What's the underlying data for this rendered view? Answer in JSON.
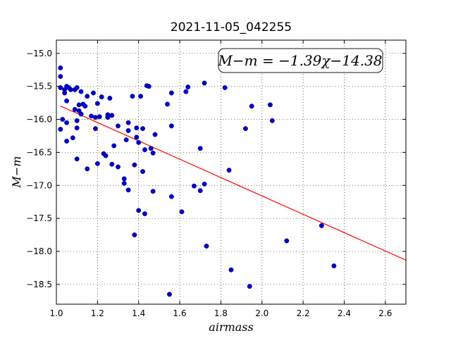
{
  "chart_data": {
    "type": "scatter",
    "title": "2021-11-05_042255",
    "xlabel": "airmass",
    "ylabel": "M−m",
    "xlim": [
      1.0,
      2.7
    ],
    "ylim": [
      -18.8,
      -14.8
    ],
    "y_inverted": true,
    "x_ticks": [
      "1.0",
      "1.2",
      "1.4",
      "1.6",
      "1.8",
      "2.0",
      "2.2",
      "2.4",
      "2.6"
    ],
    "x_tick_values": [
      1.0,
      1.2,
      1.4,
      1.6,
      1.8,
      2.0,
      2.2,
      2.4,
      2.6
    ],
    "y_ticks": [
      "−15.0",
      "−15.5",
      "−16.0",
      "−16.5",
      "−17.0",
      "−17.5",
      "−18.0",
      "−18.5"
    ],
    "y_tick_values": [
      -15.0,
      -15.5,
      -16.0,
      -16.5,
      -17.0,
      -17.5,
      -18.0,
      -18.5
    ],
    "grid": true,
    "point_color": "#0000cc",
    "fit_color": "#ff0000",
    "annotation": "M−m = −1.39χ−14.38",
    "fit": {
      "slope": -1.39,
      "intercept": -14.38
    },
    "points": [
      [
        1.02,
        -15.22
      ],
      [
        1.02,
        -15.35
      ],
      [
        1.02,
        -15.52
      ],
      [
        1.02,
        -16.15
      ],
      [
        1.03,
        -16.0
      ],
      [
        1.04,
        -15.55
      ],
      [
        1.04,
        -15.6
      ],
      [
        1.05,
        -15.5
      ],
      [
        1.05,
        -15.72
      ],
      [
        1.05,
        -16.05
      ],
      [
        1.05,
        -16.33
      ],
      [
        1.06,
        -15.52
      ],
      [
        1.07,
        -15.55
      ],
      [
        1.08,
        -16.28
      ],
      [
        1.09,
        -15.55
      ],
      [
        1.09,
        -15.85
      ],
      [
        1.1,
        -15.52
      ],
      [
        1.1,
        -16.02
      ],
      [
        1.1,
        -16.13
      ],
      [
        1.1,
        -16.6
      ],
      [
        1.11,
        -15.78
      ],
      [
        1.11,
        -15.87
      ],
      [
        1.12,
        -15.58
      ],
      [
        1.12,
        -15.92
      ],
      [
        1.13,
        -15.77
      ],
      [
        1.14,
        -15.8
      ],
      [
        1.15,
        -15.65
      ],
      [
        1.15,
        -16.75
      ],
      [
        1.17,
        -15.95
      ],
      [
        1.18,
        -15.6
      ],
      [
        1.19,
        -16.14
      ],
      [
        1.19,
        -15.97
      ],
      [
        1.2,
        -15.76
      ],
      [
        1.2,
        -16.67
      ],
      [
        1.21,
        -15.96
      ],
      [
        1.22,
        -15.66
      ],
      [
        1.23,
        -16.52
      ],
      [
        1.24,
        -16.55
      ],
      [
        1.25,
        -15.93
      ],
      [
        1.25,
        -15.97
      ],
      [
        1.26,
        -15.68
      ],
      [
        1.27,
        -16.68
      ],
      [
        1.27,
        -15.94
      ],
      [
        1.28,
        -16.4
      ],
      [
        1.3,
        -16.1
      ],
      [
        1.3,
        -16.72
      ],
      [
        1.33,
        -16.9
      ],
      [
        1.33,
        -16.97
      ],
      [
        1.34,
        -16.31
      ],
      [
        1.35,
        -17.07
      ],
      [
        1.35,
        -16.05
      ],
      [
        1.35,
        -16.17
      ],
      [
        1.37,
        -15.65
      ],
      [
        1.38,
        -17.75
      ],
      [
        1.38,
        -16.69
      ],
      [
        1.39,
        -16.27
      ],
      [
        1.39,
        -16.13
      ],
      [
        1.4,
        -17.38
      ],
      [
        1.4,
        -16.35
      ],
      [
        1.41,
        -15.65
      ],
      [
        1.42,
        -16.79
      ],
      [
        1.42,
        -16.14
      ],
      [
        1.43,
        -17.43
      ],
      [
        1.43,
        -16.46
      ],
      [
        1.44,
        -15.49
      ],
      [
        1.45,
        -15.5
      ],
      [
        1.46,
        -16.44
      ],
      [
        1.47,
        -16.51
      ],
      [
        1.47,
        -17.09
      ],
      [
        1.48,
        -16.23
      ],
      [
        1.54,
        -15.77
      ],
      [
        1.55,
        -18.65
      ],
      [
        1.56,
        -15.6
      ],
      [
        1.56,
        -16.1
      ],
      [
        1.56,
        -17.17
      ],
      [
        1.61,
        -17.4
      ],
      [
        1.63,
        -15.58
      ],
      [
        1.64,
        -15.51
      ],
      [
        1.67,
        -17.01
      ],
      [
        1.7,
        -17.08
      ],
      [
        1.7,
        -16.44
      ],
      [
        1.72,
        -15.45
      ],
      [
        1.72,
        -16.98
      ],
      [
        1.73,
        -17.92
      ],
      [
        1.82,
        -15.52
      ],
      [
        1.84,
        -16.77
      ],
      [
        1.85,
        -18.28
      ],
      [
        1.92,
        -16.14
      ],
      [
        1.94,
        -18.53
      ],
      [
        1.95,
        -15.8
      ],
      [
        2.04,
        -15.78
      ],
      [
        2.05,
        -16.02
      ],
      [
        2.12,
        -17.84
      ],
      [
        2.29,
        -17.61
      ],
      [
        2.35,
        -18.22
      ]
    ]
  }
}
